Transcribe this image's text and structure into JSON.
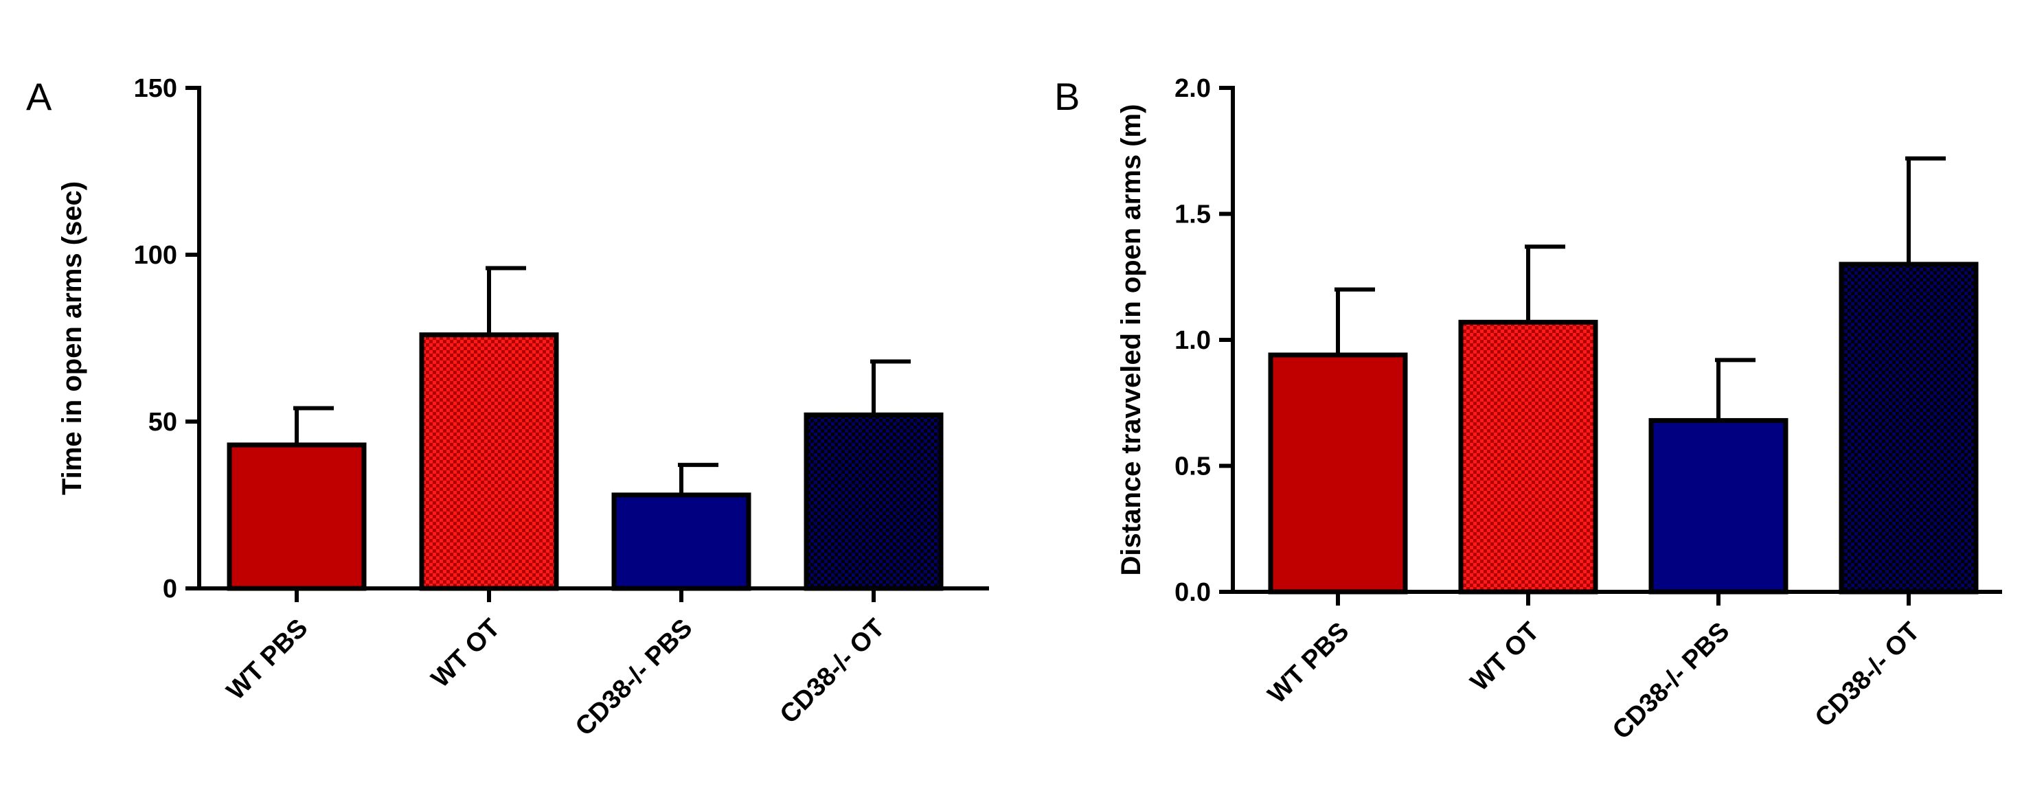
{
  "colors": {
    "wt_pbs": "#C00000",
    "wt_ot_base": "#FF1A1A",
    "wt_ot_dot": "#B00000",
    "cd38_pbs": "#000080",
    "cd38_ot_base": "#000066",
    "cd38_ot_dot": "#000000"
  },
  "chart_data": [
    {
      "panel": "A",
      "type": "bar",
      "categories": [
        "WT PBS",
        "WT OT",
        "CD38-/- PBS",
        "CD38-/- OT"
      ],
      "values": [
        43,
        76,
        28,
        52
      ],
      "error_upper": [
        54,
        96,
        37,
        68
      ],
      "ylabel": "Time in open arms (sec)",
      "xlabel": "",
      "ylim": [
        0,
        150
      ],
      "yticks": [
        0,
        50,
        100,
        150
      ],
      "ytick_labels": [
        "0",
        "50",
        "100",
        "150"
      ],
      "grid": false,
      "patterns": [
        "solid",
        "checker",
        "solid",
        "checker"
      ]
    },
    {
      "panel": "B",
      "type": "bar",
      "categories": [
        "WT PBS",
        "WT OT",
        "CD38-/- PBS",
        "CD38-/- OT"
      ],
      "values": [
        0.94,
        1.07,
        0.68,
        1.3
      ],
      "error_upper": [
        1.2,
        1.37,
        0.92,
        1.72
      ],
      "ylabel": "Distance travveled in open arms (m)",
      "xlabel": "",
      "ylim": [
        0,
        2.0
      ],
      "yticks": [
        0,
        0.5,
        1.0,
        1.5,
        2.0
      ],
      "ytick_labels": [
        "0.0",
        "0.5",
        "1.0",
        "1.5",
        "2.0"
      ],
      "grid": false,
      "patterns": [
        "solid",
        "checker",
        "solid",
        "checker"
      ]
    }
  ]
}
